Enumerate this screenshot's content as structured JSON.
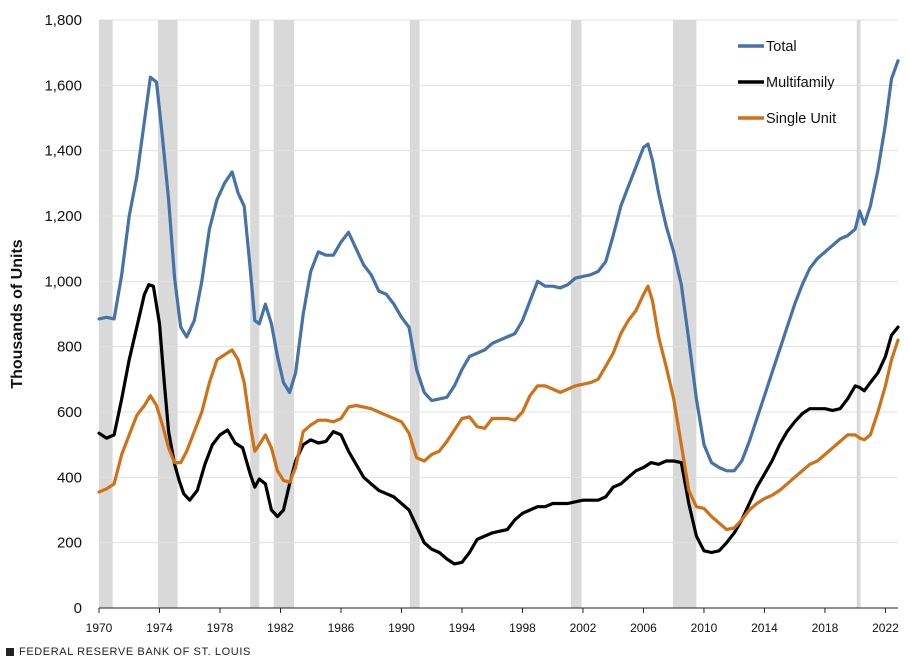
{
  "footer": {
    "source": "FEDERAL RESERVE BANK OF ST. LOUIS"
  },
  "chart_data": {
    "type": "line",
    "title": "",
    "xlabel": "",
    "ylabel": "Thousands of Units",
    "xlim": [
      1970.0,
      2022.83
    ],
    "ylim": [
      0,
      1800
    ],
    "yticks": [
      0,
      200,
      400,
      600,
      800,
      1000,
      1200,
      1400,
      1600,
      1800
    ],
    "ytick_labels": [
      "0",
      "200",
      "400",
      "600",
      "800",
      "1,000",
      "1,200",
      "1,400",
      "1,600",
      "1,800"
    ],
    "xticks": [
      1970,
      1974,
      1978,
      1982,
      1986,
      1990,
      1994,
      1998,
      2002,
      2006,
      2010,
      2014,
      2018,
      2022
    ],
    "xtick_labels": [
      "1970",
      "1974",
      "1978",
      "1982",
      "1986",
      "1990",
      "1994",
      "1998",
      "2002",
      "2006",
      "2010",
      "2014",
      "2018",
      "2022"
    ],
    "grid": "horizontal",
    "legend_position": "top-right",
    "recessions": [
      [
        1970.0,
        1970.9
      ],
      [
        1973.9,
        1975.2
      ],
      [
        1980.0,
        1980.6
      ],
      [
        1981.55,
        1982.9
      ],
      [
        1990.55,
        1991.2
      ],
      [
        2001.2,
        2001.9
      ],
      [
        2007.95,
        2009.5
      ],
      [
        2020.1,
        2020.35
      ]
    ],
    "series": [
      {
        "name": "Total",
        "color": "#4572a7",
        "x": [
          1970.0,
          1970.5,
          1971.0,
          1971.5,
          1972.0,
          1972.5,
          1973.0,
          1973.4,
          1973.8,
          1974.2,
          1974.6,
          1975.0,
          1975.4,
          1975.8,
          1976.3,
          1976.8,
          1977.3,
          1977.8,
          1978.3,
          1978.8,
          1979.2,
          1979.6,
          1980.0,
          1980.3,
          1980.6,
          1981.0,
          1981.4,
          1981.8,
          1982.2,
          1982.6,
          1983.0,
          1983.5,
          1984.0,
          1984.5,
          1985.0,
          1985.5,
          1986.0,
          1986.5,
          1987.0,
          1987.5,
          1988.0,
          1988.5,
          1989.0,
          1989.5,
          1990.0,
          1990.5,
          1991.0,
          1991.5,
          1992.0,
          1992.5,
          1993.0,
          1993.5,
          1994.0,
          1994.5,
          1995.0,
          1995.5,
          1996.0,
          1996.5,
          1997.0,
          1997.5,
          1998.0,
          1998.5,
          1999.0,
          1999.5,
          2000.0,
          2000.5,
          2001.0,
          2001.5,
          2002.0,
          2002.5,
          2003.0,
          2003.5,
          2004.0,
          2004.5,
          2005.0,
          2005.5,
          2006.0,
          2006.3,
          2006.6,
          2007.0,
          2007.5,
          2008.0,
          2008.5,
          2009.0,
          2009.5,
          2010.0,
          2010.5,
          2011.0,
          2011.5,
          2012.0,
          2012.5,
          2013.0,
          2013.5,
          2014.0,
          2014.5,
          2015.0,
          2015.5,
          2016.0,
          2016.5,
          2017.0,
          2017.5,
          2018.0,
          2018.5,
          2019.0,
          2019.5,
          2020.0,
          2020.3,
          2020.6,
          2021.0,
          2021.5,
          2022.0,
          2022.4,
          2022.83
        ],
        "values": [
          885,
          890,
          885,
          1020,
          1200,
          1320,
          1490,
          1625,
          1610,
          1440,
          1250,
          1010,
          860,
          830,
          880,
          1000,
          1160,
          1250,
          1300,
          1335,
          1270,
          1230,
          1040,
          880,
          870,
          930,
          870,
          770,
          690,
          660,
          720,
          900,
          1030,
          1090,
          1080,
          1080,
          1120,
          1150,
          1100,
          1050,
          1020,
          970,
          960,
          930,
          890,
          860,
          730,
          660,
          635,
          640,
          645,
          680,
          730,
          770,
          780,
          790,
          810,
          820,
          830,
          840,
          880,
          940,
          1000,
          985,
          985,
          980,
          990,
          1010,
          1015,
          1020,
          1030,
          1060,
          1140,
          1230,
          1290,
          1350,
          1410,
          1420,
          1370,
          1270,
          1170,
          1090,
          990,
          820,
          640,
          500,
          445,
          430,
          420,
          420,
          450,
          510,
          580,
          650,
          720,
          790,
          860,
          930,
          990,
          1040,
          1070,
          1090,
          1110,
          1130,
          1140,
          1160,
          1215,
          1175,
          1230,
          1340,
          1480,
          1620,
          1675
        ]
      },
      {
        "name": "Multifamily",
        "color": "#000000",
        "x": [
          1970.0,
          1970.5,
          1971.0,
          1971.5,
          1972.0,
          1972.5,
          1973.0,
          1973.3,
          1973.6,
          1974.0,
          1974.3,
          1974.6,
          1975.0,
          1975.3,
          1975.6,
          1976.0,
          1976.5,
          1977.0,
          1977.5,
          1978.0,
          1978.5,
          1979.0,
          1979.5,
          1980.0,
          1980.3,
          1980.6,
          1981.0,
          1981.4,
          1981.8,
          1982.2,
          1982.6,
          1983.0,
          1983.5,
          1984.0,
          1984.5,
          1985.0,
          1985.5,
          1986.0,
          1986.5,
          1987.0,
          1987.5,
          1988.0,
          1988.5,
          1989.0,
          1989.5,
          1990.0,
          1990.5,
          1991.0,
          1991.5,
          1992.0,
          1992.5,
          1993.0,
          1993.5,
          1994.0,
          1994.5,
          1995.0,
          1995.5,
          1996.0,
          1996.5,
          1997.0,
          1997.5,
          1998.0,
          1998.5,
          1999.0,
          1999.5,
          2000.0,
          2000.5,
          2001.0,
          2001.5,
          2002.0,
          2002.5,
          2003.0,
          2003.5,
          2004.0,
          2004.5,
          2005.0,
          2005.5,
          2006.0,
          2006.5,
          2007.0,
          2007.5,
          2008.0,
          2008.5,
          2009.0,
          2009.5,
          2010.0,
          2010.5,
          2011.0,
          2011.5,
          2012.0,
          2012.5,
          2013.0,
          2013.5,
          2014.0,
          2014.5,
          2015.0,
          2015.5,
          2016.0,
          2016.5,
          2017.0,
          2017.5,
          2018.0,
          2018.5,
          2019.0,
          2019.5,
          2020.0,
          2020.3,
          2020.6,
          2021.0,
          2021.5,
          2022.0,
          2022.4,
          2022.83
        ],
        "values": [
          535,
          520,
          530,
          640,
          760,
          860,
          960,
          990,
          985,
          870,
          700,
          540,
          440,
          390,
          350,
          330,
          360,
          440,
          500,
          530,
          545,
          505,
          490,
          410,
          370,
          395,
          380,
          300,
          280,
          300,
          380,
          450,
          500,
          515,
          505,
          510,
          540,
          530,
          480,
          440,
          400,
          380,
          360,
          350,
          340,
          320,
          300,
          250,
          200,
          180,
          170,
          150,
          135,
          140,
          170,
          210,
          220,
          230,
          235,
          240,
          270,
          290,
          300,
          310,
          310,
          320,
          320,
          320,
          325,
          330,
          330,
          330,
          340,
          370,
          380,
          400,
          420,
          430,
          445,
          440,
          450,
          450,
          445,
          320,
          220,
          175,
          170,
          175,
          200,
          230,
          270,
          320,
          370,
          410,
          450,
          500,
          540,
          570,
          595,
          610,
          610,
          610,
          605,
          610,
          640,
          680,
          675,
          665,
          690,
          720,
          770,
          835,
          860
        ]
      },
      {
        "name": "Single Unit",
        "color": "#d07116",
        "x": [
          1970.0,
          1970.5,
          1971.0,
          1971.5,
          1972.0,
          1972.5,
          1973.0,
          1973.4,
          1973.8,
          1974.2,
          1974.6,
          1975.0,
          1975.4,
          1975.8,
          1976.3,
          1976.8,
          1977.3,
          1977.8,
          1978.3,
          1978.8,
          1979.2,
          1979.6,
          1980.0,
          1980.3,
          1980.6,
          1981.0,
          1981.4,
          1981.8,
          1982.2,
          1982.6,
          1983.0,
          1983.5,
          1984.0,
          1984.5,
          1985.0,
          1985.5,
          1986.0,
          1986.5,
          1987.0,
          1987.5,
          1988.0,
          1988.5,
          1989.0,
          1989.5,
          1990.0,
          1990.5,
          1991.0,
          1991.5,
          1992.0,
          1992.5,
          1993.0,
          1993.5,
          1994.0,
          1994.5,
          1995.0,
          1995.5,
          1996.0,
          1996.5,
          1997.0,
          1997.5,
          1998.0,
          1998.5,
          1999.0,
          1999.5,
          2000.0,
          2000.5,
          2001.0,
          2001.5,
          2002.0,
          2002.5,
          2003.0,
          2003.5,
          2004.0,
          2004.5,
          2005.0,
          2005.5,
          2006.0,
          2006.3,
          2006.6,
          2007.0,
          2007.5,
          2008.0,
          2008.5,
          2009.0,
          2009.5,
          2010.0,
          2010.5,
          2011.0,
          2011.5,
          2012.0,
          2012.5,
          2013.0,
          2013.5,
          2014.0,
          2014.5,
          2015.0,
          2015.5,
          2016.0,
          2016.5,
          2017.0,
          2017.5,
          2018.0,
          2018.5,
          2019.0,
          2019.5,
          2020.0,
          2020.3,
          2020.6,
          2021.0,
          2021.5,
          2022.0,
          2022.4,
          2022.83
        ],
        "values": [
          355,
          365,
          380,
          470,
          530,
          590,
          620,
          650,
          620,
          560,
          490,
          445,
          445,
          480,
          540,
          600,
          690,
          760,
          775,
          790,
          760,
          690,
          560,
          480,
          500,
          530,
          490,
          420,
          390,
          385,
          430,
          540,
          560,
          575,
          575,
          570,
          580,
          615,
          620,
          615,
          610,
          600,
          590,
          580,
          570,
          535,
          460,
          450,
          470,
          480,
          510,
          545,
          580,
          585,
          555,
          550,
          580,
          580,
          580,
          575,
          600,
          650,
          680,
          680,
          670,
          660,
          670,
          680,
          685,
          690,
          700,
          740,
          780,
          840,
          880,
          910,
          960,
          985,
          940,
          830,
          740,
          640,
          500,
          360,
          310,
          305,
          280,
          260,
          240,
          245,
          270,
          300,
          320,
          335,
          345,
          360,
          380,
          400,
          420,
          440,
          450,
          470,
          490,
          510,
          530,
          530,
          520,
          515,
          530,
          600,
          680,
          760,
          820
        ]
      }
    ]
  }
}
